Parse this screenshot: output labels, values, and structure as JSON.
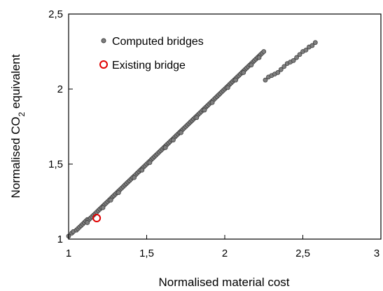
{
  "chart_data": {
    "type": "scatter",
    "xlabel": "Normalised material cost",
    "ylabel": {
      "prefix": "Normalised CO",
      "sub": "2",
      "suffix": " equivalent"
    },
    "xlim": [
      1,
      3
    ],
    "ylim": [
      1,
      2.5
    ],
    "x_ticks": [
      1,
      1.5,
      2,
      2.5,
      3
    ],
    "x_tick_labels": [
      "1",
      "1,5",
      "2",
      "2,5",
      "3"
    ],
    "y_ticks": [
      1,
      1.5,
      2,
      2.5
    ],
    "y_tick_labels": [
      "1",
      "1,5",
      "2",
      "2,5"
    ],
    "grid": false,
    "legend_position": "top-left",
    "series": [
      {
        "name": "Computed bridges",
        "color": "#7f7f7f",
        "edge_color": "#404040",
        "marker": "filled-circle",
        "points": [
          [
            1.0,
            1.02
          ],
          [
            1.02,
            1.04
          ],
          [
            1.03,
            1.05
          ],
          [
            1.05,
            1.06
          ],
          [
            1.06,
            1.07
          ],
          [
            1.07,
            1.08
          ],
          [
            1.08,
            1.09
          ],
          [
            1.09,
            1.1
          ],
          [
            1.1,
            1.11
          ],
          [
            1.11,
            1.12
          ],
          [
            1.12,
            1.13
          ],
          [
            1.13,
            1.13
          ],
          [
            1.14,
            1.14
          ],
          [
            1.15,
            1.15
          ],
          [
            1.16,
            1.16
          ],
          [
            1.17,
            1.17
          ],
          [
            1.18,
            1.18
          ],
          [
            1.19,
            1.19
          ],
          [
            1.2,
            1.2
          ],
          [
            1.21,
            1.21
          ],
          [
            1.22,
            1.22
          ],
          [
            1.23,
            1.23
          ],
          [
            1.24,
            1.24
          ],
          [
            1.25,
            1.25
          ],
          [
            1.26,
            1.26
          ],
          [
            1.27,
            1.27
          ],
          [
            1.28,
            1.28
          ],
          [
            1.29,
            1.29
          ],
          [
            1.3,
            1.3
          ],
          [
            1.31,
            1.31
          ],
          [
            1.32,
            1.32
          ],
          [
            1.33,
            1.33
          ],
          [
            1.34,
            1.34
          ],
          [
            1.35,
            1.35
          ],
          [
            1.36,
            1.36
          ],
          [
            1.37,
            1.37
          ],
          [
            1.38,
            1.38
          ],
          [
            1.39,
            1.39
          ],
          [
            1.4,
            1.4
          ],
          [
            1.41,
            1.41
          ],
          [
            1.42,
            1.42
          ],
          [
            1.43,
            1.43
          ],
          [
            1.44,
            1.44
          ],
          [
            1.45,
            1.45
          ],
          [
            1.46,
            1.46
          ],
          [
            1.47,
            1.47
          ],
          [
            1.48,
            1.48
          ],
          [
            1.49,
            1.49
          ],
          [
            1.5,
            1.5
          ],
          [
            1.51,
            1.51
          ],
          [
            1.52,
            1.52
          ],
          [
            1.53,
            1.53
          ],
          [
            1.54,
            1.54
          ],
          [
            1.55,
            1.55
          ],
          [
            1.56,
            1.56
          ],
          [
            1.57,
            1.57
          ],
          [
            1.58,
            1.58
          ],
          [
            1.59,
            1.59
          ],
          [
            1.6,
            1.6
          ],
          [
            1.61,
            1.61
          ],
          [
            1.62,
            1.62
          ],
          [
            1.63,
            1.63
          ],
          [
            1.64,
            1.64
          ],
          [
            1.65,
            1.65
          ],
          [
            1.66,
            1.66
          ],
          [
            1.67,
            1.67
          ],
          [
            1.68,
            1.68
          ],
          [
            1.69,
            1.69
          ],
          [
            1.7,
            1.7
          ],
          [
            1.71,
            1.71
          ],
          [
            1.72,
            1.72
          ],
          [
            1.73,
            1.73
          ],
          [
            1.74,
            1.74
          ],
          [
            1.75,
            1.75
          ],
          [
            1.76,
            1.76
          ],
          [
            1.77,
            1.77
          ],
          [
            1.78,
            1.78
          ],
          [
            1.79,
            1.79
          ],
          [
            1.8,
            1.8
          ],
          [
            1.81,
            1.81
          ],
          [
            1.82,
            1.82
          ],
          [
            1.83,
            1.83
          ],
          [
            1.84,
            1.84
          ],
          [
            1.85,
            1.85
          ],
          [
            1.86,
            1.86
          ],
          [
            1.87,
            1.87
          ],
          [
            1.88,
            1.88
          ],
          [
            1.89,
            1.89
          ],
          [
            1.9,
            1.9
          ],
          [
            1.91,
            1.91
          ],
          [
            1.92,
            1.92
          ],
          [
            1.93,
            1.93
          ],
          [
            1.94,
            1.94
          ],
          [
            1.95,
            1.95
          ],
          [
            1.96,
            1.96
          ],
          [
            1.97,
            1.97
          ],
          [
            1.98,
            1.98
          ],
          [
            1.99,
            1.99
          ],
          [
            2.0,
            2.0
          ],
          [
            2.01,
            2.01
          ],
          [
            2.02,
            2.02
          ],
          [
            2.03,
            2.03
          ],
          [
            2.04,
            2.04
          ],
          [
            2.05,
            2.05
          ],
          [
            2.06,
            2.06
          ],
          [
            2.07,
            2.07
          ],
          [
            2.08,
            2.08
          ],
          [
            2.09,
            2.09
          ],
          [
            2.1,
            2.1
          ],
          [
            2.11,
            2.11
          ],
          [
            2.12,
            2.12
          ],
          [
            2.13,
            2.13
          ],
          [
            2.14,
            2.14
          ],
          [
            2.15,
            2.15
          ],
          [
            2.16,
            2.16
          ],
          [
            2.17,
            2.17
          ],
          [
            2.18,
            2.18
          ],
          [
            2.19,
            2.19
          ],
          [
            2.2,
            2.2
          ],
          [
            2.21,
            2.21
          ],
          [
            2.22,
            2.22
          ],
          [
            2.23,
            2.23
          ],
          [
            2.24,
            2.24
          ],
          [
            2.25,
            2.25
          ],
          [
            2.26,
            2.06
          ],
          [
            2.28,
            2.08
          ],
          [
            2.3,
            2.09
          ],
          [
            2.32,
            2.1
          ],
          [
            2.34,
            2.11
          ],
          [
            2.36,
            2.13
          ],
          [
            2.38,
            2.15
          ],
          [
            2.4,
            2.17
          ],
          [
            2.42,
            2.18
          ],
          [
            2.44,
            2.19
          ],
          [
            2.46,
            2.21
          ],
          [
            2.48,
            2.23
          ],
          [
            2.5,
            2.25
          ],
          [
            2.52,
            2.26
          ],
          [
            2.54,
            2.28
          ],
          [
            2.56,
            2.29
          ],
          [
            2.58,
            2.31
          ],
          [
            1.12,
            1.11
          ],
          [
            1.22,
            1.21
          ],
          [
            1.32,
            1.31
          ],
          [
            1.42,
            1.41
          ],
          [
            1.52,
            1.51
          ],
          [
            1.62,
            1.61
          ],
          [
            1.72,
            1.71
          ],
          [
            1.82,
            1.81
          ],
          [
            1.92,
            1.91
          ],
          [
            2.02,
            2.01
          ],
          [
            2.12,
            2.11
          ],
          [
            2.22,
            2.21
          ],
          [
            1.27,
            1.26
          ],
          [
            1.47,
            1.46
          ],
          [
            1.67,
            1.66
          ],
          [
            1.87,
            1.86
          ],
          [
            2.07,
            2.06
          ],
          [
            2.17,
            2.16
          ]
        ]
      },
      {
        "name": "Existing bridge",
        "color": "#e00000",
        "marker": "hollow-circle",
        "points": [
          [
            1.18,
            1.14
          ]
        ]
      }
    ]
  }
}
